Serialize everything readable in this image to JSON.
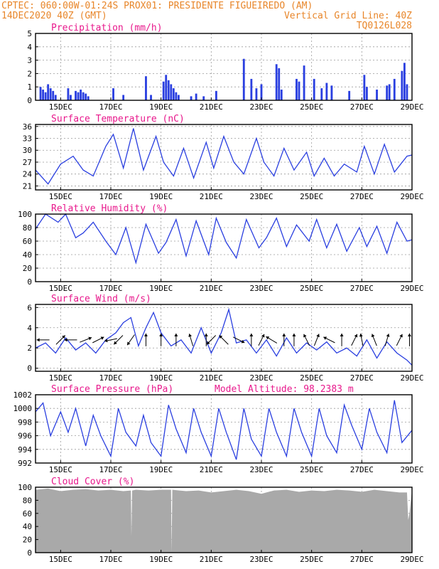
{
  "header": {
    "line1_left": "CPTEC:    060:00W-01:24S   PROX01: PRESIDENTE FIGUEIREDO (AM)",
    "line2_left": "14DEC2020 40Z (GMT)",
    "line2_right": "Vertical Grid Line: 40Z",
    "line3_right": "TQ0126L028"
  },
  "colors": {
    "header": "#e8862a",
    "panel_title": "#e8188c",
    "series": "#2a3fe0",
    "cloud": "#a9a9a9",
    "wind_arrow": "#000000"
  },
  "chart_data": [
    {
      "type": "bar",
      "title": "Precipitation (mm/h)",
      "x_tick_labels": [
        "15DEC",
        "17DEC",
        "19DEC",
        "21DEC",
        "23DEC",
        "25DEC",
        "27DEC",
        "29DEC"
      ],
      "ylim": [
        0,
        5
      ],
      "y_ticks": [
        0,
        1,
        2,
        3,
        4,
        5
      ],
      "grid": true,
      "x": [
        14.2,
        14.3,
        14.4,
        14.5,
        14.6,
        14.7,
        14.8,
        15.3,
        15.4,
        15.6,
        15.7,
        15.8,
        15.9,
        16.0,
        16.1,
        17.1,
        17.5,
        18.4,
        18.6,
        19.1,
        19.2,
        19.3,
        19.4,
        19.5,
        19.6,
        19.7,
        20.2,
        20.4,
        20.7,
        21.2,
        22.3,
        22.6,
        22.8,
        23.0,
        23.6,
        23.7,
        23.8,
        24.4,
        24.5,
        24.7,
        25.1,
        25.4,
        25.6,
        25.8,
        26.5,
        27.1,
        27.2,
        27.6,
        28.0,
        28.1,
        28.3,
        28.6,
        28.7,
        28.8
      ],
      "values": [
        1.0,
        0.8,
        0.6,
        1.2,
        0.9,
        0.7,
        0.4,
        0.9,
        0.4,
        0.7,
        0.6,
        0.8,
        0.6,
        0.5,
        0.3,
        0.9,
        0.4,
        1.8,
        0.4,
        1.4,
        1.9,
        1.5,
        1.2,
        0.9,
        0.6,
        0.4,
        0.3,
        0.5,
        0.3,
        0.7,
        3.1,
        1.6,
        0.9,
        1.2,
        2.7,
        2.4,
        0.8,
        1.6,
        1.4,
        2.6,
        1.6,
        0.9,
        1.3,
        1.1,
        0.7,
        1.9,
        1.0,
        0.8,
        1.1,
        1.2,
        1.6,
        2.2,
        2.8,
        1.2
      ]
    },
    {
      "type": "line",
      "title": "Surface Temperature (nC)",
      "x_tick_labels": [
        "15DEC",
        "17DEC",
        "19DEC",
        "21DEC",
        "23DEC",
        "25DEC",
        "27DEC",
        "29DEC"
      ],
      "ylim": [
        20,
        36.5
      ],
      "y_ticks": [
        21,
        24,
        27,
        30,
        33,
        36
      ],
      "grid": true,
      "x": [
        14.0,
        14.5,
        15.0,
        15.5,
        15.9,
        16.3,
        16.8,
        17.1,
        17.5,
        17.9,
        18.3,
        18.8,
        19.1,
        19.5,
        19.9,
        20.3,
        20.8,
        21.1,
        21.5,
        21.9,
        22.3,
        22.8,
        23.1,
        23.5,
        23.9,
        24.3,
        24.8,
        25.1,
        25.5,
        25.9,
        26.3,
        26.8,
        27.1,
        27.5,
        27.9,
        28.3,
        28.8,
        29.0
      ],
      "values": [
        25.0,
        21.5,
        26.5,
        28.5,
        25.0,
        23.5,
        31.0,
        34.0,
        25.5,
        35.5,
        25.0,
        33.5,
        27.0,
        23.5,
        30.5,
        23.0,
        32.0,
        25.5,
        33.5,
        27.0,
        24.0,
        33.0,
        27.0,
        23.5,
        30.5,
        25.0,
        29.5,
        23.5,
        28.0,
        23.5,
        26.5,
        24.5,
        31.0,
        24.0,
        31.5,
        24.5,
        28.5,
        28.8
      ]
    },
    {
      "type": "line",
      "title": "Relative Humidity (%)",
      "x_tick_labels": [
        "15DEC",
        "17DEC",
        "19DEC",
        "21DEC",
        "23DEC",
        "25DEC",
        "27DEC",
        "29DEC"
      ],
      "ylim": [
        0,
        100
      ],
      "y_ticks": [
        0,
        20,
        40,
        60,
        80,
        100
      ],
      "grid": true,
      "x": [
        14.0,
        14.4,
        14.9,
        15.2,
        15.6,
        15.9,
        16.3,
        16.8,
        17.2,
        17.6,
        18.0,
        18.4,
        18.9,
        19.2,
        19.6,
        20.0,
        20.4,
        20.9,
        21.2,
        21.6,
        22.0,
        22.4,
        22.9,
        23.2,
        23.6,
        24.0,
        24.4,
        24.9,
        25.2,
        25.6,
        26.0,
        26.4,
        26.9,
        27.2,
        27.6,
        28.0,
        28.4,
        28.8,
        29.0
      ],
      "values": [
        78,
        100,
        88,
        100,
        65,
        72,
        88,
        60,
        40,
        80,
        28,
        85,
        42,
        58,
        92,
        38,
        90,
        40,
        94,
        58,
        35,
        92,
        50,
        65,
        94,
        52,
        84,
        60,
        92,
        50,
        85,
        45,
        80,
        52,
        82,
        42,
        88,
        60,
        62
      ]
    },
    {
      "type": "line",
      "title": "Surface Wind (m/s)",
      "x_tick_labels": [
        "15DEC",
        "17DEC",
        "19DEC",
        "21DEC",
        "23DEC",
        "25DEC",
        "27DEC",
        "29DEC"
      ],
      "ylim": [
        -0.3,
        6.3
      ],
      "y_ticks": [
        0,
        2,
        4,
        6
      ],
      "grid": true,
      "x": [
        14.0,
        14.4,
        14.8,
        15.2,
        15.6,
        16.0,
        16.4,
        16.8,
        17.2,
        17.5,
        17.8,
        18.1,
        18.4,
        18.7,
        19.0,
        19.4,
        19.8,
        20.2,
        20.6,
        21.0,
        21.4,
        21.7,
        22.0,
        22.4,
        22.8,
        23.2,
        23.6,
        24.0,
        24.4,
        24.8,
        25.2,
        25.6,
        26.0,
        26.4,
        26.8,
        27.2,
        27.6,
        28.0,
        28.4,
        28.8,
        29.0
      ],
      "values": [
        2.0,
        2.5,
        1.5,
        3.0,
        1.8,
        2.5,
        1.5,
        2.8,
        3.5,
        4.5,
        5.0,
        2.2,
        4.0,
        5.5,
        3.5,
        2.2,
        2.8,
        1.5,
        4.0,
        1.5,
        3.5,
        5.8,
        2.5,
        2.8,
        1.5,
        2.8,
        1.2,
        3.0,
        1.5,
        2.5,
        1.8,
        2.6,
        1.5,
        2.0,
        1.2,
        2.8,
        1.0,
        2.6,
        1.5,
        0.8,
        0.3
      ]
    },
    {
      "type": "line",
      "title": "Surface Pressure (hPa)",
      "annotation": "Model Altitude: 98.2383 m",
      "x_tick_labels": [
        "15DEC",
        "17DEC",
        "19DEC",
        "21DEC",
        "23DEC",
        "25DEC",
        "27DEC",
        "29DEC"
      ],
      "ylim": [
        992,
        1002
      ],
      "y_ticks": [
        992,
        994,
        996,
        998,
        1000,
        1002
      ],
      "grid": true,
      "x": [
        14.0,
        14.3,
        14.6,
        15.0,
        15.3,
        15.6,
        16.0,
        16.3,
        16.6,
        17.0,
        17.3,
        17.6,
        18.0,
        18.3,
        18.6,
        19.0,
        19.3,
        19.6,
        20.0,
        20.3,
        20.6,
        21.0,
        21.3,
        21.6,
        22.0,
        22.3,
        22.6,
        23.0,
        23.3,
        23.6,
        24.0,
        24.3,
        24.6,
        25.0,
        25.3,
        25.6,
        26.0,
        26.3,
        26.6,
        27.0,
        27.3,
        27.6,
        28.0,
        28.3,
        28.6,
        29.0
      ],
      "values": [
        999.5,
        1000.8,
        996.0,
        999.5,
        996.5,
        1000.0,
        994.5,
        999.0,
        996.0,
        993.0,
        1000.0,
        996.5,
        994.5,
        999.0,
        995.0,
        993.0,
        1000.5,
        997.0,
        993.5,
        1000.0,
        996.5,
        993.0,
        1000.0,
        996.5,
        992.5,
        1000.0,
        995.5,
        993.0,
        1000.0,
        996.5,
        993.0,
        1000.0,
        996.5,
        993.0,
        1000.0,
        996.0,
        993.5,
        1000.5,
        997.5,
        994.0,
        1000.0,
        996.5,
        993.5,
        1001.2,
        995.0,
        996.8
      ]
    },
    {
      "type": "area",
      "title": "Cloud Cover (%)",
      "x_tick_labels": [
        "15DEC",
        "17DEC",
        "19DEC",
        "21DEC",
        "23DEC",
        "25DEC",
        "27DEC",
        "29DEC"
      ],
      "ylim": [
        0,
        100
      ],
      "y_ticks": [
        0,
        20,
        40,
        60,
        80,
        100
      ],
      "grid": true,
      "x": [
        14.0,
        14.5,
        15.0,
        15.5,
        16.0,
        16.5,
        17.0,
        17.5,
        17.8,
        17.82,
        17.85,
        18.0,
        18.5,
        19.0,
        19.4,
        19.42,
        19.45,
        20.0,
        20.5,
        21.0,
        21.5,
        22.0,
        22.5,
        23.0,
        23.5,
        24.0,
        24.5,
        25.0,
        25.5,
        26.0,
        26.5,
        27.0,
        27.5,
        28.0,
        28.5,
        28.8,
        28.85,
        28.9,
        29.0
      ],
      "values": [
        96,
        98,
        94,
        96,
        97,
        95,
        96,
        94,
        95,
        25,
        95,
        96,
        95,
        96,
        96,
        0,
        96,
        94,
        95,
        92,
        94,
        96,
        94,
        90,
        95,
        96,
        93,
        95,
        94,
        96,
        95,
        93,
        96,
        94,
        92,
        92,
        50,
        60,
        96
      ]
    }
  ],
  "wind_arrows": [
    {
      "day": 14.3,
      "u": -1,
      "v": 0
    },
    {
      "day": 15.0,
      "u": 1,
      "v": 1
    },
    {
      "day": 15.4,
      "u": -1,
      "v": 0
    },
    {
      "day": 16.0,
      "u": 1,
      "v": 0.4
    },
    {
      "day": 16.5,
      "u": 1,
      "v": 0.5
    },
    {
      "day": 17.0,
      "u": -1,
      "v": -0.2
    },
    {
      "day": 17.3,
      "u": -1,
      "v": -1
    },
    {
      "day": 17.8,
      "u": -0.7,
      "v": -1
    },
    {
      "day": 18.4,
      "u": 0,
      "v": 1
    },
    {
      "day": 19.0,
      "u": 0,
      "v": 1
    },
    {
      "day": 19.6,
      "u": 0,
      "v": 1
    },
    {
      "day": 20.2,
      "u": -0.3,
      "v": 1
    },
    {
      "day": 20.8,
      "u": 0,
      "v": 1
    },
    {
      "day": 21.0,
      "u": -1,
      "v": -1
    },
    {
      "day": 21.5,
      "u": -1,
      "v": 1
    },
    {
      "day": 22.1,
      "u": 1,
      "v": -0.5
    },
    {
      "day": 22.6,
      "u": 0,
      "v": 1
    },
    {
      "day": 23.0,
      "u": 0.5,
      "v": 1
    },
    {
      "day": 23.4,
      "u": -1,
      "v": 0.6
    },
    {
      "day": 23.9,
      "u": 0,
      "v": 1
    },
    {
      "day": 24.3,
      "u": 0,
      "v": 1
    },
    {
      "day": 24.8,
      "u": -0.5,
      "v": 1
    },
    {
      "day": 25.2,
      "u": 0.4,
      "v": 1
    },
    {
      "day": 25.7,
      "u": -1,
      "v": 0.5
    },
    {
      "day": 26.2,
      "u": 0,
      "v": 1
    },
    {
      "day": 26.7,
      "u": 0.5,
      "v": 1
    },
    {
      "day": 27.0,
      "u": -0.2,
      "v": 1
    },
    {
      "day": 27.5,
      "u": -0.4,
      "v": 1
    },
    {
      "day": 28.0,
      "u": 0.3,
      "v": 1
    },
    {
      "day": 28.5,
      "u": 0.5,
      "v": 1
    },
    {
      "day": 28.9,
      "u": 0,
      "v": 1
    }
  ]
}
